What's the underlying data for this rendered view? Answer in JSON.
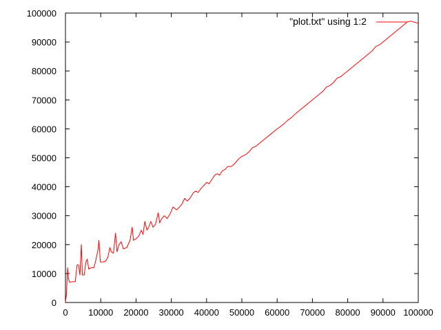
{
  "chart_data": {
    "type": "line",
    "title": "",
    "xlabel": "",
    "ylabel": "",
    "xlim": [
      0,
      100000
    ],
    "ylim": [
      0,
      100000
    ],
    "grid": false,
    "legend_position": "top-right",
    "x_ticks": [
      0,
      10000,
      20000,
      30000,
      40000,
      50000,
      60000,
      70000,
      80000,
      90000,
      100000
    ],
    "y_ticks": [
      0,
      10000,
      20000,
      30000,
      40000,
      50000,
      60000,
      70000,
      80000,
      90000,
      100000
    ],
    "series": [
      {
        "name": "\"plot.txt\" using 1:2",
        "color": "#ff0000",
        "points": [
          [
            0,
            200
          ],
          [
            300,
            3000
          ],
          [
            600,
            12000
          ],
          [
            900,
            8000
          ],
          [
            1200,
            7000
          ],
          [
            2000,
            7200
          ],
          [
            2800,
            7200
          ],
          [
            3000,
            10000
          ],
          [
            3300,
            13000
          ],
          [
            3700,
            13000
          ],
          [
            4100,
            9500
          ],
          [
            4500,
            20000
          ],
          [
            4800,
            9500
          ],
          [
            5300,
            9500
          ],
          [
            5800,
            14000
          ],
          [
            6200,
            15000
          ],
          [
            6600,
            11500
          ],
          [
            7200,
            12000
          ],
          [
            8000,
            12000
          ],
          [
            8500,
            14000
          ],
          [
            9200,
            18000
          ],
          [
            9500,
            21500
          ],
          [
            9900,
            14000
          ],
          [
            10500,
            14000
          ],
          [
            11300,
            14200
          ],
          [
            12000,
            15500
          ],
          [
            12600,
            19000
          ],
          [
            13000,
            17500
          ],
          [
            13600,
            17000
          ],
          [
            14200,
            24000
          ],
          [
            14600,
            17500
          ],
          [
            15200,
            20000
          ],
          [
            15800,
            21000
          ],
          [
            16400,
            18500
          ],
          [
            17400,
            19000
          ],
          [
            18300,
            21500
          ],
          [
            18900,
            26000
          ],
          [
            19300,
            21500
          ],
          [
            20000,
            22000
          ],
          [
            20800,
            23000
          ],
          [
            21500,
            25000
          ],
          [
            22000,
            23500
          ],
          [
            22500,
            28000
          ],
          [
            23100,
            25000
          ],
          [
            23600,
            26000
          ],
          [
            24200,
            28000
          ],
          [
            24800,
            26000
          ],
          [
            25500,
            27000
          ],
          [
            26300,
            31000
          ],
          [
            26700,
            27500
          ],
          [
            27300,
            29000
          ],
          [
            28000,
            30000
          ],
          [
            28800,
            29000
          ],
          [
            29600,
            30500
          ],
          [
            30500,
            33000
          ],
          [
            31500,
            32000
          ],
          [
            32300,
            33000
          ],
          [
            33000,
            34000
          ],
          [
            33800,
            36000
          ],
          [
            34500,
            35000
          ],
          [
            35300,
            36000
          ],
          [
            36300,
            38000
          ],
          [
            37000,
            38500
          ],
          [
            37600,
            38000
          ],
          [
            38500,
            39500
          ],
          [
            39300,
            40500
          ],
          [
            40000,
            41500
          ],
          [
            40700,
            41000
          ],
          [
            41500,
            42500
          ],
          [
            42300,
            44000
          ],
          [
            43000,
            44500
          ],
          [
            43700,
            44000
          ],
          [
            44500,
            45500
          ],
          [
            45300,
            46000
          ],
          [
            46000,
            47000
          ],
          [
            47000,
            47000
          ],
          [
            48000,
            48000
          ],
          [
            49000,
            49500
          ],
          [
            50000,
            50500
          ],
          [
            51000,
            51000
          ],
          [
            52000,
            52000
          ],
          [
            53000,
            53500
          ],
          [
            54000,
            54000
          ],
          [
            55000,
            55000
          ],
          [
            56000,
            56000
          ],
          [
            57000,
            57000
          ],
          [
            58000,
            58000
          ],
          [
            59000,
            59000
          ],
          [
            60000,
            60000
          ],
          [
            61000,
            60800
          ],
          [
            62000,
            61800
          ],
          [
            63000,
            63000
          ],
          [
            64000,
            63800
          ],
          [
            65000,
            65000
          ],
          [
            66000,
            66000
          ],
          [
            67000,
            67000
          ],
          [
            68000,
            68000
          ],
          [
            69000,
            69000
          ],
          [
            70000,
            70000
          ],
          [
            71000,
            71000
          ],
          [
            72000,
            72000
          ],
          [
            73000,
            73000
          ],
          [
            74000,
            74500
          ],
          [
            75000,
            75000
          ],
          [
            76000,
            76000
          ],
          [
            77000,
            77500
          ],
          [
            78000,
            78000
          ],
          [
            79000,
            79000
          ],
          [
            80000,
            80000
          ],
          [
            81000,
            81000
          ],
          [
            82000,
            82000
          ],
          [
            83000,
            83000
          ],
          [
            84000,
            84000
          ],
          [
            85000,
            85000
          ],
          [
            86000,
            86000
          ],
          [
            87000,
            87000
          ],
          [
            88000,
            88500
          ],
          [
            89000,
            89000
          ],
          [
            90000,
            90000
          ],
          [
            91000,
            91000
          ],
          [
            92000,
            92000
          ],
          [
            93000,
            93000
          ],
          [
            94000,
            94000
          ],
          [
            95000,
            95000
          ],
          [
            96000,
            96000
          ],
          [
            97000,
            97000
          ],
          [
            98000,
            97200
          ],
          [
            99000,
            96800
          ],
          [
            100000,
            96500
          ]
        ]
      }
    ]
  }
}
